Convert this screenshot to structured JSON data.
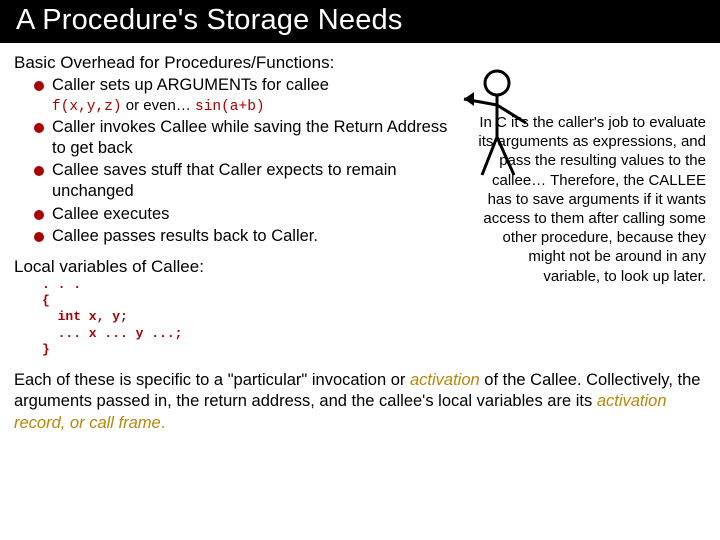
{
  "colors": {
    "title_bg": "#000000",
    "title_fg": "#ffffff",
    "bullet_fill": "#a80000",
    "accent": "#b8860b",
    "code_color": "#a80000",
    "body_text": "#000000"
  },
  "title": "A Procedure's Storage Needs",
  "subhead": "Basic Overhead for Procedures/Functions:",
  "bullets": {
    "b1_a": "Caller",
    "b1_b": " sets up ARGUMENTs for callee",
    "b1_sub_code1": "f(x,y,z)",
    "b1_sub_mid": " or even… ",
    "b1_sub_code2": "sin(a+b)",
    "b2_a": "Caller",
    "b2_b": " invokes ",
    "b2_c": "Callee",
    "b2_d": " while saving the ",
    "b2_e": "Return Address",
    "b2_f": " to get back",
    "b3_a": "Callee",
    "b3_b": " saves stuff that ",
    "b3_c": "Caller",
    "b3_d": " expects to remain unchanged",
    "b4_a": "Callee",
    "b4_b": " executes",
    "b5_a": "Callee",
    "b5_b": " passes results back to ",
    "b5_c": "Caller",
    "b5_d": "."
  },
  "local_head": "Local variables of Callee:",
  "code_block": ". . .\n{\n  int x, y;\n  ... x ... y ...;\n}",
  "right_text": "In C it's the caller's job to evaluate its arguments as expressions, and pass the resulting values to the callee… Therefore, the CALLEE has to save arguments if it wants access to them after calling some other procedure, because they might not be around in any variable, to look up later.",
  "summary": {
    "s1": "Each of these is specific to a \"particular\" invocation or ",
    "s2": "activation",
    "s3": " of the Callee. Collectively, the arguments passed in, the return address, and the callee's local variables are its ",
    "s4": "activation record, or call frame",
    "s5": "."
  }
}
